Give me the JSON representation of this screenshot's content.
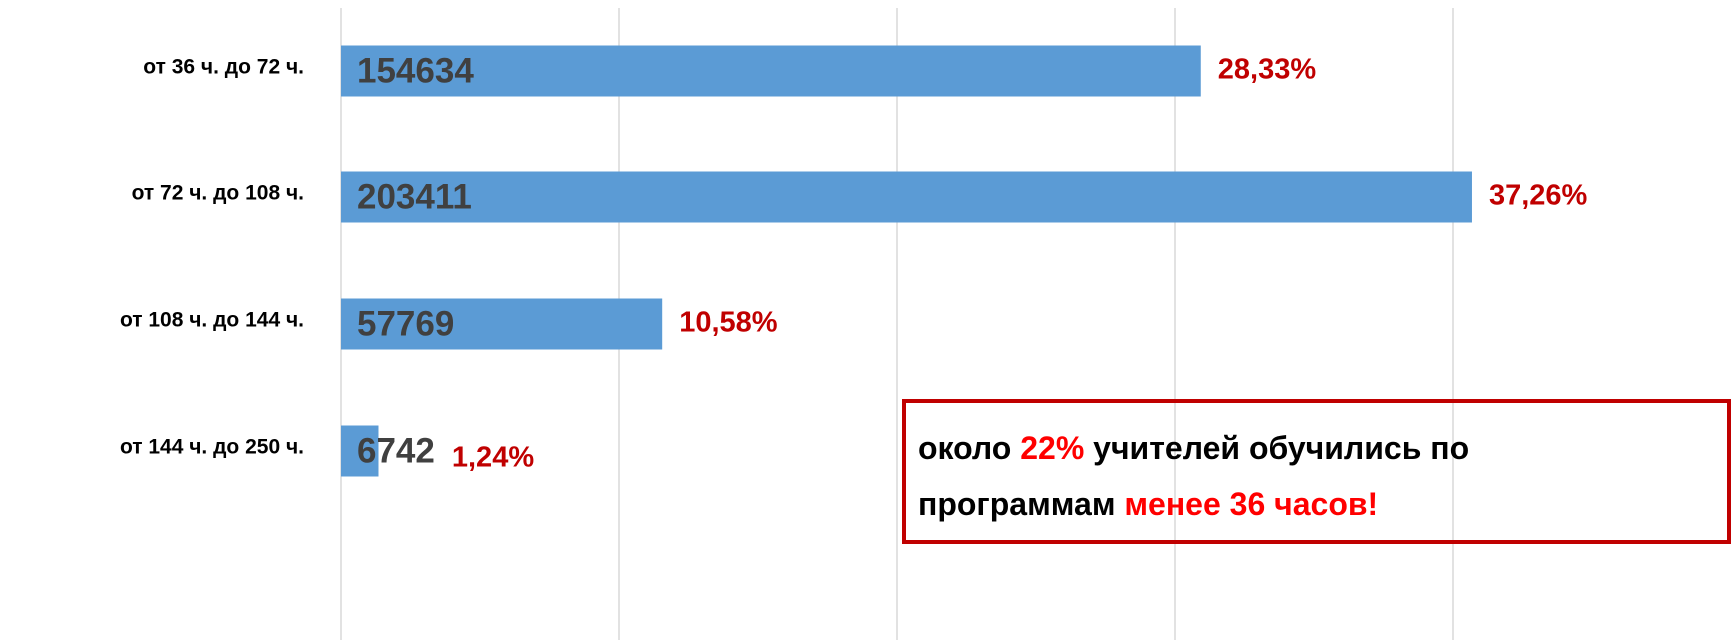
{
  "chart_data": {
    "type": "barh",
    "categories": [
      "от 36 ч. до 72 ч.",
      "от 72 ч. до 108 ч.",
      "от 108 ч. до 144 ч.",
      "от 144 ч. до 250 ч."
    ],
    "values": [
      154634,
      203411,
      57769,
      6742
    ],
    "color": "#5b9bd5",
    "share_values": [
      28.33,
      37.26,
      10.58,
      1.24
    ],
    "share_labels": [
      "28,33%",
      "37,26%",
      "10,58%",
      "1,24%"
    ],
    "share_color": "#c00000",
    "xlim": [
      0,
      250000
    ],
    "xticks": [
      0,
      50000,
      100000,
      150000,
      200000
    ],
    "grid": true,
    "annotation": {
      "lines": [
        [
          "около ",
          "22%",
          " учителей обучились по"
        ],
        [
          "программам ",
          "менее 36 часов!"
        ]
      ],
      "highlight_color": "#ff0000",
      "border_color": "#c00000"
    }
  }
}
